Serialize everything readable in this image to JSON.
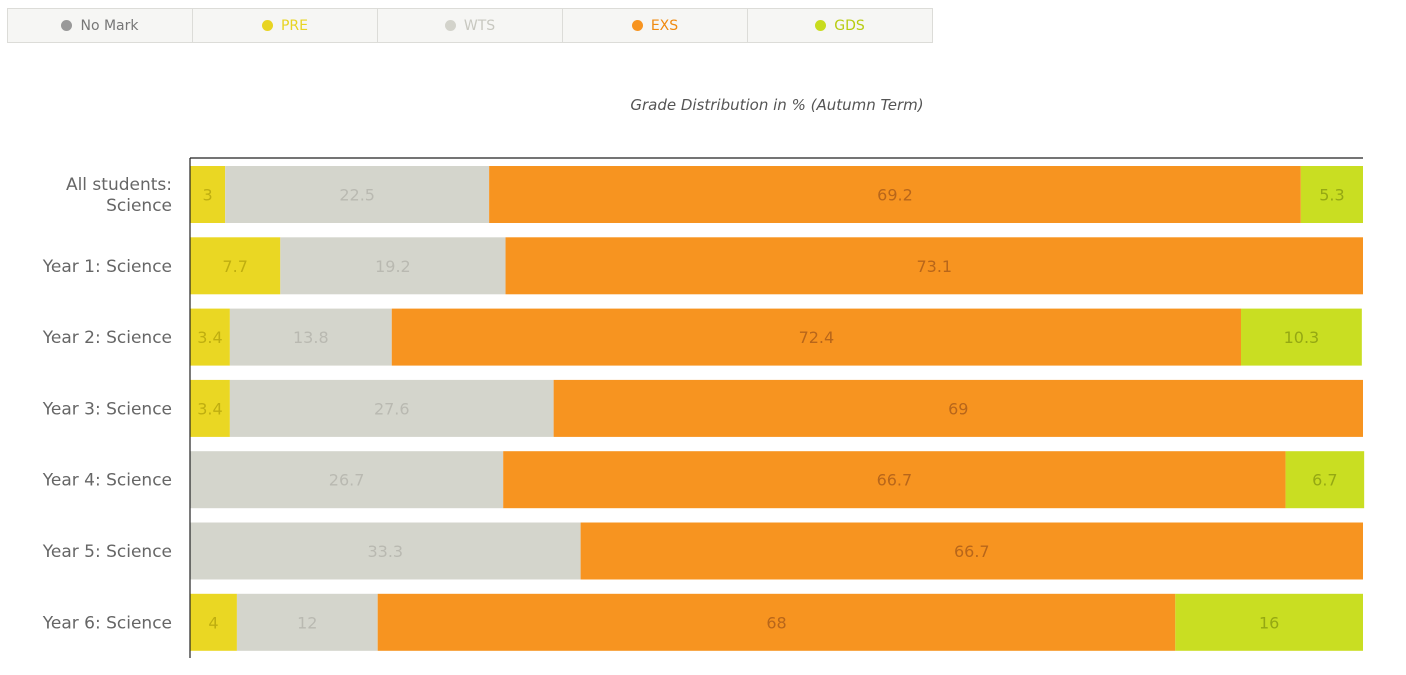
{
  "legend": [
    {
      "label": "No Mark",
      "dot_color": "#999999",
      "text_color": "#777777"
    },
    {
      "label": "PRE",
      "dot_color": "#e8d422",
      "text_color": "#e8d422"
    },
    {
      "label": "WTS",
      "dot_color": "#d3d3cb",
      "text_color": "#c8c8c0"
    },
    {
      "label": "EXS",
      "dot_color": "#f79420",
      "text_color": "#f08a10"
    },
    {
      "label": "GDS",
      "dot_color": "#c8dc1e",
      "text_color": "#b8cc10"
    }
  ],
  "chart_data": {
    "type": "bar",
    "orientation": "horizontal",
    "stacked": true,
    "title": "Grade Distribution in % (Autumn Term)",
    "xlim": [
      0,
      100
    ],
    "categories": [
      [
        "All students:",
        "Science"
      ],
      [
        "Year 1: Science"
      ],
      [
        "Year 2: Science"
      ],
      [
        "Year 3: Science"
      ],
      [
        "Year 4: Science"
      ],
      [
        "Year 5: Science"
      ],
      [
        "Year 6: Science"
      ]
    ],
    "series": [
      {
        "name": "No Mark",
        "color": "#999999",
        "label_color": "#777777",
        "values": [
          0,
          0,
          0,
          0,
          0,
          0,
          0
        ]
      },
      {
        "name": "PRE",
        "color": "#ead723",
        "label_color": "#bfae10",
        "values": [
          3,
          7.7,
          3.4,
          3.4,
          0,
          0,
          4
        ]
      },
      {
        "name": "WTS",
        "color": "#d4d5cc",
        "label_color": "#b9b9b1",
        "values": [
          22.5,
          19.2,
          13.8,
          27.6,
          26.7,
          33.3,
          12
        ]
      },
      {
        "name": "EXS",
        "color": "#f79420",
        "label_color": "#b8661a",
        "values": [
          69.2,
          73.1,
          72.4,
          69,
          66.7,
          66.7,
          68
        ]
      },
      {
        "name": "GDS",
        "color": "#c9de22",
        "label_color": "#95a813",
        "values": [
          5.3,
          0,
          10.3,
          0,
          6.7,
          0,
          16
        ]
      }
    ]
  }
}
